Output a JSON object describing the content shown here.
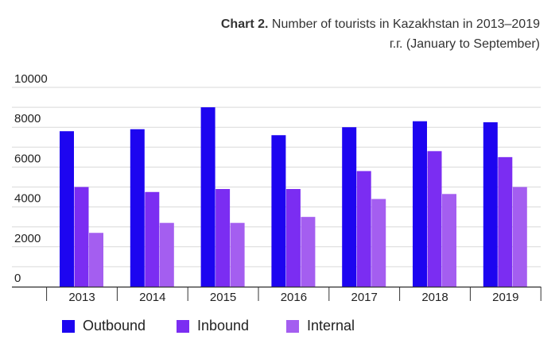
{
  "title": {
    "bold": "Chart 2.",
    "text": "Number of tourists in Kazakhstan in 2013–2019 г.г. (January to September)"
  },
  "chart_data": {
    "type": "bar",
    "categories": [
      "2013",
      "2014",
      "2015",
      "2016",
      "2017",
      "2018",
      "2019"
    ],
    "series": [
      {
        "name": "Outbound",
        "color": "#1d05f0",
        "values": [
          7800,
          7900,
          9000,
          7600,
          8000,
          8300,
          8250
        ]
      },
      {
        "name": "Inbound",
        "color": "#7b2df2",
        "values": [
          5000,
          4750,
          4900,
          4900,
          5800,
          6800,
          6500
        ]
      },
      {
        "name": "Internal",
        "color": "#a45ef0",
        "values": [
          2700,
          3200,
          3200,
          3500,
          4400,
          4650,
          5000
        ]
      }
    ],
    "yticks": [
      0,
      2000,
      4000,
      6000,
      8000,
      10000
    ],
    "ylim": [
      0,
      10000
    ],
    "grid": true,
    "legend": "bottom"
  }
}
